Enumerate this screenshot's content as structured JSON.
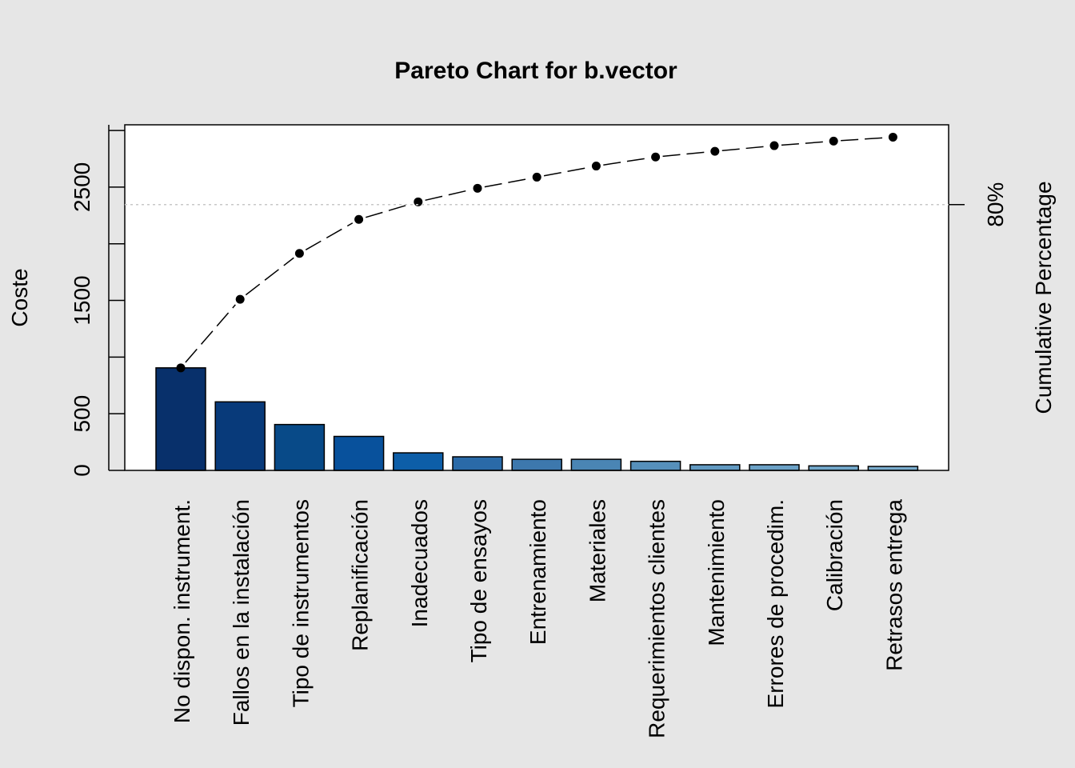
{
  "chart_data": {
    "type": "bar",
    "title": "Pareto Chart for b.vector",
    "ylabel": "Coste",
    "y2label": "Cumulative Percentage",
    "ylim": [
      0,
      3050
    ],
    "yticks": [
      0,
      500,
      1500,
      2500
    ],
    "y2_marker": {
      "label": "80%",
      "value": 2346
    },
    "categories": [
      "No dispon. instrument.",
      "Fallos en la instalación",
      "Tipo de instrumentos",
      "Replanificación",
      "Inadecuados",
      "Tipo de ensayos",
      "Entrenamiento",
      "Materiales",
      "Requerimientos clientes",
      "Mantenimiento",
      "Errores de procedim.",
      "Calibración",
      "Retrasos entrega"
    ],
    "values": [
      905,
      605,
      405,
      300,
      155,
      120,
      98,
      98,
      80,
      50,
      50,
      40,
      35
    ],
    "cumulative": [
      905,
      1510,
      1915,
      2215,
      2370,
      2490,
      2588,
      2686,
      2766,
      2816,
      2866,
      2906,
      2941
    ],
    "colors": [
      "#08306b",
      "#083a7a",
      "#084a88",
      "#08519c",
      "#0d5ea8",
      "#2a6aa8",
      "#3d78ad",
      "#4a85b4",
      "#5690bb",
      "#6199c1",
      "#6ba1c6",
      "#72a7ca",
      "#7aadce"
    ],
    "grid": false
  }
}
